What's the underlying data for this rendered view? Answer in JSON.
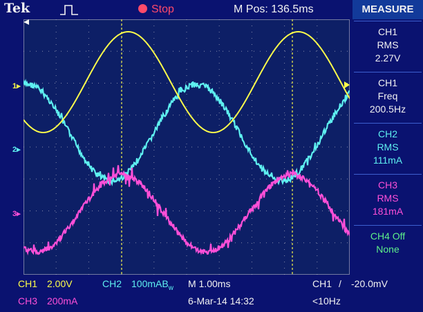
{
  "topbar": {
    "brand": "Tek",
    "run_state": "Stop",
    "m_pos": "M Pos: 136.5ms"
  },
  "measure": {
    "title": "MEASURE",
    "items": [
      {
        "line1": "CH1",
        "line2": "RMS",
        "value": "2.27V",
        "color": "#f2f2f2"
      },
      {
        "line1": "CH1",
        "line2": "Freq",
        "value": "200.5Hz",
        "color": "#f2f2f2"
      },
      {
        "line1": "CH2",
        "line2": "RMS",
        "value": "111mA",
        "color": "#5ef0f0"
      },
      {
        "line1": "CH3",
        "line2": "RMS",
        "value": "181mA",
        "color": "#ff4fd8"
      },
      {
        "line1": "CH4 Off",
        "line2": "None",
        "value": "",
        "color": "#5ef08a"
      }
    ]
  },
  "channel_markers": {
    "ch1": "1",
    "ch2": "2",
    "ch3": "3"
  },
  "bottom": {
    "ch1_label": "CH1",
    "ch1_scale": "2.00V",
    "ch2_label": "CH2",
    "ch2_scale": "100mAB",
    "ch2_bw": "w",
    "timebase": "M 1.00ms",
    "trig_source": "CH1",
    "trig_slope": "/",
    "trig_level": "-20.0mV",
    "ch3_label": "CH3",
    "ch3_scale": "200mA",
    "date_time": "6-Mar-14 14:32",
    "trig_freq": "<10Hz"
  },
  "colors": {
    "ch1": "#ffff4a",
    "ch2": "#5ef0f0",
    "ch3": "#ff4fd8",
    "cursor": "#e6e64a",
    "grid": "#b8b8c8",
    "background": "#0a1270"
  }
}
